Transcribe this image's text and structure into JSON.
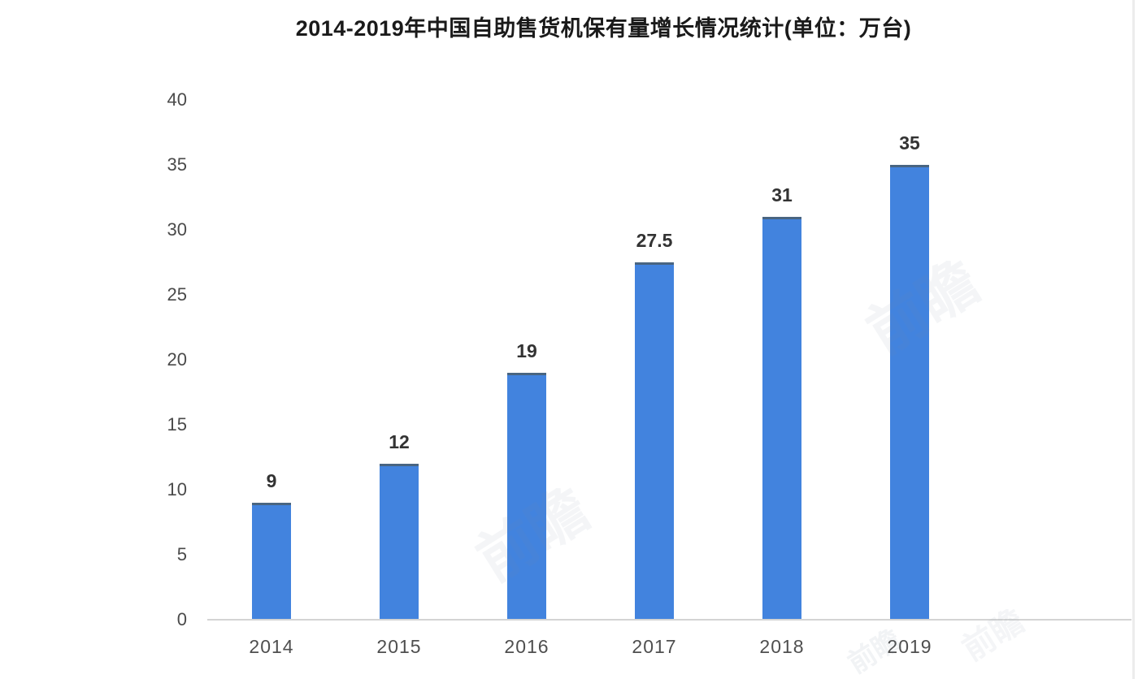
{
  "chart_data": {
    "type": "bar",
    "title": "2014-2019年中国自助售货机保有量增长情况统计(单位：万台)",
    "unit_label": "万台",
    "categories": [
      "2014",
      "2015",
      "2016",
      "2017",
      "2018",
      "2019"
    ],
    "values": [
      9,
      12,
      19,
      27.5,
      31,
      35
    ],
    "data_labels": [
      "9",
      "12",
      "19",
      "27.5",
      "31",
      "35"
    ],
    "xlabel": "",
    "ylabel": "",
    "ylim": [
      0,
      40
    ],
    "yticks": [
      0,
      5,
      10,
      15,
      20,
      25,
      30,
      35,
      40
    ],
    "grid": false,
    "legend_position": "none",
    "bar_color": "#4283DE",
    "bar_cap_color": "#5b6a73",
    "axis_line_color": "#d4d4d4",
    "tick_label_color": "#4a4a4a",
    "value_label_color": "#333333",
    "title_color": "#1a1a1a"
  },
  "watermark": {
    "text": "前瞻"
  }
}
